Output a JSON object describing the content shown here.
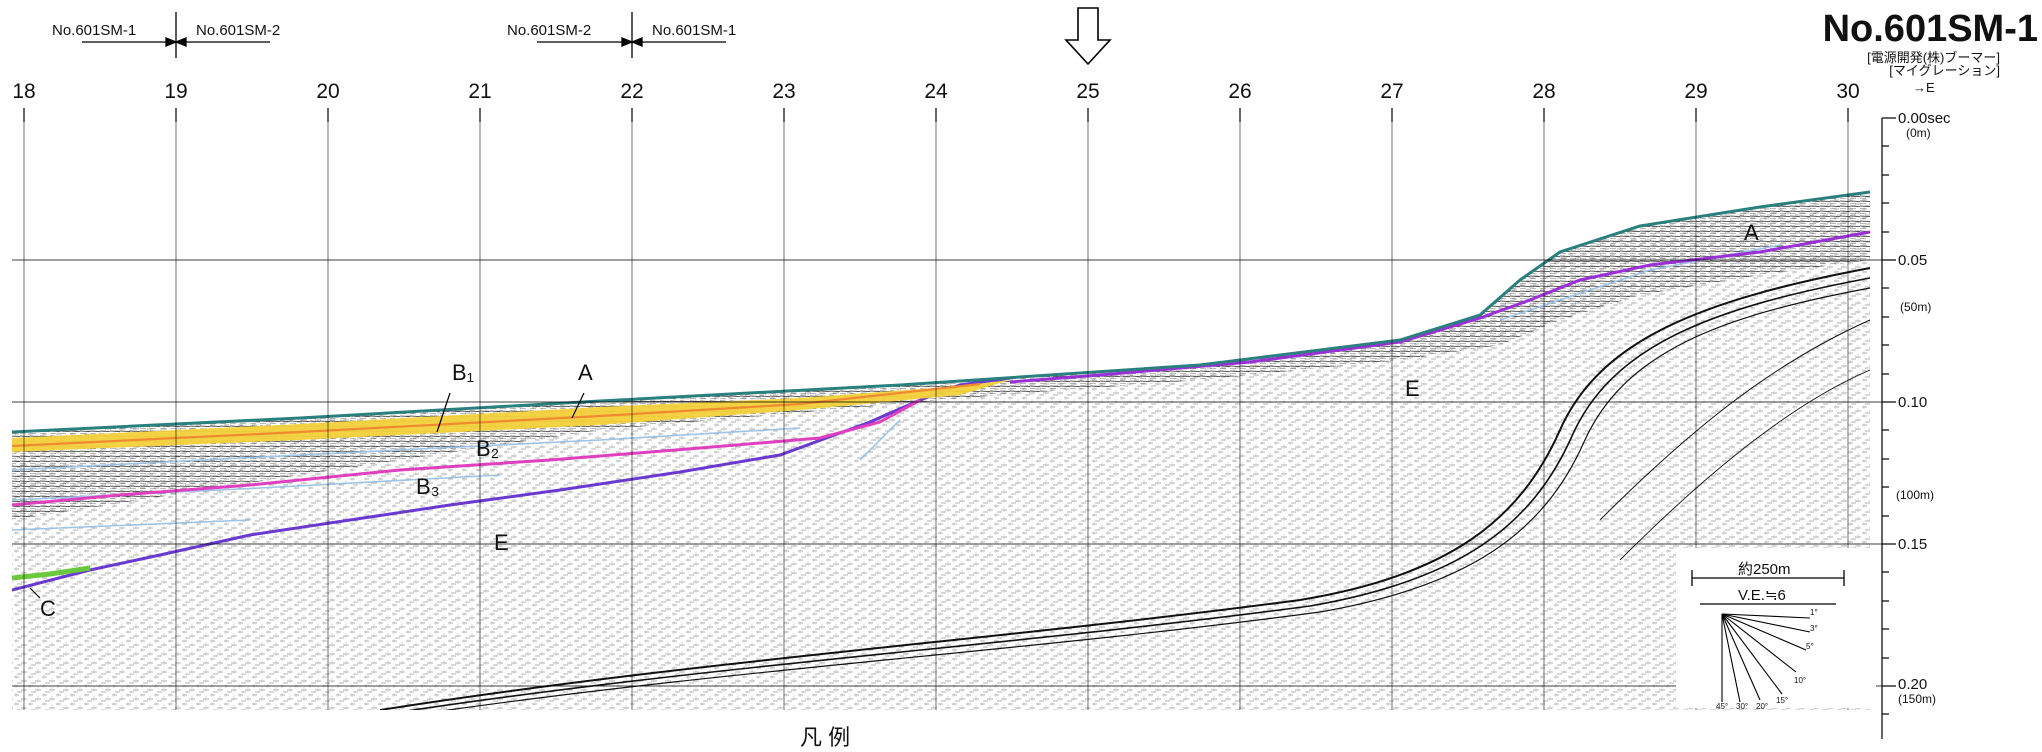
{
  "profile": {
    "title": "No.601SM-1",
    "subtitle_1": "[電源開発(株)ブーマー]",
    "subtitle_2": "[マイグレーション]",
    "direction": "→E"
  },
  "junctions": [
    {
      "left": "No.601SM-1",
      "right": "No.601SM-2"
    },
    {
      "left": "No.601SM-2",
      "right": "No.601SM-1"
    }
  ],
  "distance_ticks": [
    "18",
    "19",
    "20",
    "21",
    "22",
    "23",
    "24",
    "25",
    "26",
    "27",
    "28",
    "29",
    "30"
  ],
  "time_axis": [
    {
      "sec": "0.00sec",
      "m": "(0m)"
    },
    {
      "sec": "0.05",
      "m": "(50m)"
    },
    {
      "sec": "0.10",
      "m": "(100m)"
    },
    {
      "sec": "0.15",
      "m": ""
    },
    {
      "sec": "0.20",
      "m": "(150m)"
    }
  ],
  "horizon_labels": [
    "B₁",
    "A",
    "B₂",
    "B₃",
    "E",
    "C",
    "E",
    "A"
  ],
  "scale": {
    "text": "約250m",
    "ve": "V.E.≒6",
    "angles": [
      "1°",
      "3°",
      "5°",
      "10°",
      "15°",
      "20°",
      "30°",
      "45°"
    ]
  },
  "legend_heading": "凡 例",
  "colors": {
    "seafloor": "#2a7f7f",
    "horizon_A": "#9b30d9",
    "horizon_B1": "#f3d23a",
    "horizon_B2": "#e03fc0",
    "horizon_E": "#6a3ad0",
    "horizon_C": "#6ac93a",
    "blue_refl": "#9cc3e8"
  }
}
